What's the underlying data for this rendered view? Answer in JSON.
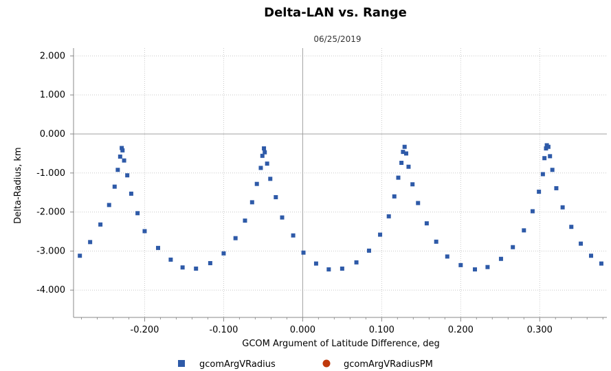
{
  "chart_data": {
    "type": "scatter",
    "title": "Delta-LAN vs. Range",
    "subtitle": "06/25/2019",
    "xlabel": "GCOM Argument of Latitude Difference, deg",
    "ylabel": "Delta-Radius, km",
    "xlim": [
      -0.29,
      0.385
    ],
    "ylim": [
      -4.7,
      2.2
    ],
    "grid": true,
    "x_ticks": [
      -0.2,
      -0.1,
      0.0,
      0.1,
      0.2,
      0.3
    ],
    "x_tick_labels": [
      "-0.200",
      "-0.100",
      "0.000",
      "0.100",
      "0.200",
      "0.300"
    ],
    "y_ticks": [
      2.0,
      1.0,
      0.0,
      -1.0,
      -2.0,
      -3.0,
      -4.0
    ],
    "y_tick_labels": [
      "2.000",
      "1.000",
      "0.000",
      "-1.000",
      "-2.000",
      "-3.000",
      "-4.000"
    ],
    "legend_position": "bottom",
    "series": [
      {
        "name": "gcomArgVRadius",
        "color": "#2e5aa8",
        "marker": "square",
        "points": [
          [
            -0.282,
            -3.12
          ],
          [
            -0.269,
            -2.77
          ],
          [
            -0.256,
            -2.32
          ],
          [
            -0.245,
            -1.82
          ],
          [
            -0.238,
            -1.35
          ],
          [
            -0.234,
            -0.92
          ],
          [
            -0.231,
            -0.58
          ],
          [
            -0.229,
            -0.36
          ],
          [
            -0.228,
            -0.42
          ],
          [
            -0.226,
            -0.68
          ],
          [
            -0.222,
            -1.06
          ],
          [
            -0.217,
            -1.53
          ],
          [
            -0.209,
            -2.03
          ],
          [
            -0.2,
            -2.49
          ],
          [
            -0.183,
            -2.92
          ],
          [
            -0.167,
            -3.22
          ],
          [
            -0.152,
            -3.42
          ],
          [
            -0.135,
            -3.45
          ],
          [
            -0.117,
            -3.31
          ],
          [
            -0.1,
            -3.06
          ],
          [
            -0.085,
            -2.67
          ],
          [
            -0.073,
            -2.22
          ],
          [
            -0.064,
            -1.75
          ],
          [
            -0.058,
            -1.28
          ],
          [
            -0.053,
            -0.87
          ],
          [
            -0.051,
            -0.56
          ],
          [
            -0.049,
            -0.37
          ],
          [
            -0.048,
            -0.47
          ],
          [
            -0.045,
            -0.76
          ],
          [
            -0.041,
            -1.15
          ],
          [
            -0.034,
            -1.62
          ],
          [
            -0.026,
            -2.14
          ],
          [
            -0.012,
            -2.6
          ],
          [
            0.001,
            -3.04
          ],
          [
            0.017,
            -3.32
          ],
          [
            0.033,
            -3.47
          ],
          [
            0.05,
            -3.45
          ],
          [
            0.068,
            -3.29
          ],
          [
            0.084,
            -2.99
          ],
          [
            0.098,
            -2.58
          ],
          [
            0.109,
            -2.11
          ],
          [
            0.116,
            -1.6
          ],
          [
            0.121,
            -1.12
          ],
          [
            0.125,
            -0.74
          ],
          [
            0.127,
            -0.46
          ],
          [
            0.129,
            -0.33
          ],
          [
            0.131,
            -0.5
          ],
          [
            0.134,
            -0.84
          ],
          [
            0.139,
            -1.29
          ],
          [
            0.146,
            -1.77
          ],
          [
            0.157,
            -2.29
          ],
          [
            0.169,
            -2.76
          ],
          [
            0.183,
            -3.14
          ],
          [
            0.2,
            -3.36
          ],
          [
            0.218,
            -3.47
          ],
          [
            0.234,
            -3.41
          ],
          [
            0.251,
            -3.2
          ],
          [
            0.266,
            -2.9
          ],
          [
            0.28,
            -2.47
          ],
          [
            0.291,
            -1.98
          ],
          [
            0.299,
            -1.48
          ],
          [
            0.304,
            -1.03
          ],
          [
            0.306,
            -0.62
          ],
          [
            0.308,
            -0.37
          ],
          [
            0.309,
            -0.29
          ],
          [
            0.311,
            -0.33
          ],
          [
            0.313,
            -0.57
          ],
          [
            0.316,
            -0.92
          ],
          [
            0.321,
            -1.39
          ],
          [
            0.329,
            -1.88
          ],
          [
            0.34,
            -2.38
          ],
          [
            0.352,
            -2.81
          ],
          [
            0.365,
            -3.12
          ],
          [
            0.378,
            -3.32
          ]
        ]
      },
      {
        "name": "gcomArgVRadiusPM",
        "color": "#c0390b",
        "marker": "circle",
        "points": []
      }
    ]
  }
}
